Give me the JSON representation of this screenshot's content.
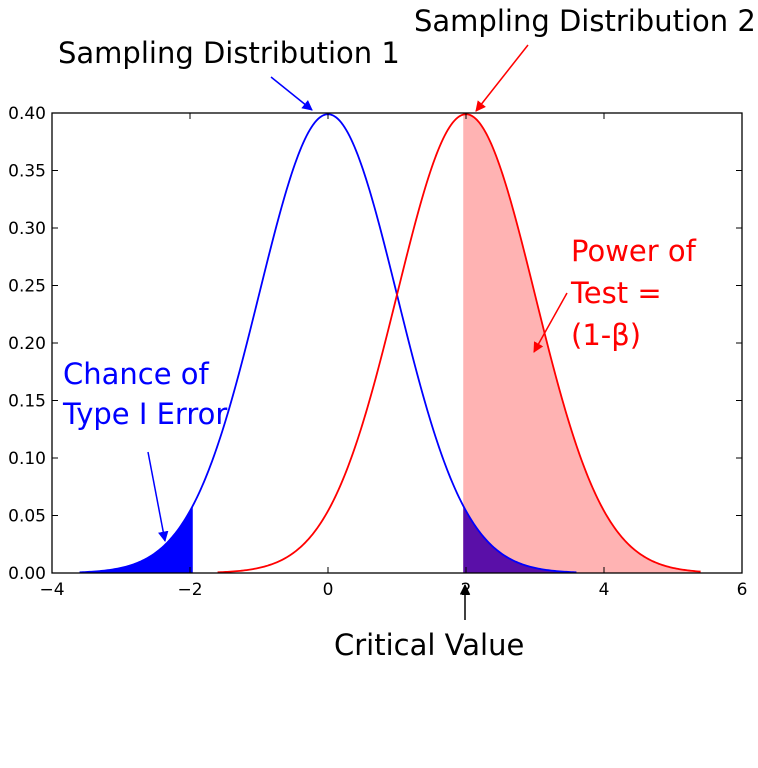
{
  "chart_data": {
    "type": "line",
    "title": "",
    "xlabel": "",
    "ylabel": "",
    "xlim": [
      -4,
      6
    ],
    "ylim": [
      0.0,
      0.4
    ],
    "x_ticks": [
      "−4",
      "−2",
      "0",
      "2",
      "4",
      "6"
    ],
    "y_ticks": [
      "0.00",
      "0.05",
      "0.10",
      "0.15",
      "0.20",
      "0.25",
      "0.30",
      "0.35",
      "0.40"
    ],
    "series": [
      {
        "mean": 0,
        "sd": 1,
        "x_range": [
          -3.6,
          3.6
        ],
        "color": "#0000ff",
        "peak": 0.399
      },
      {
        "mean": 2,
        "sd": 1,
        "x_range": [
          -1.6,
          5.4
        ],
        "color": "#ff0000",
        "peak": 0.399
      }
    ],
    "critical_value": 1.96,
    "shaded_regions": [
      {
        "series": 0,
        "from": -3.6,
        "to": -1.96,
        "color": "#0000ff"
      },
      {
        "series": 1,
        "from": 1.96,
        "to": 5.4,
        "color": "#ffb3b3"
      },
      {
        "series": 0,
        "from": 1.96,
        "to": 3.6,
        "color": "#5a0fa8"
      }
    ],
    "annotations": {
      "dist1": {
        "text": "Sampling Distribution 1",
        "color": "#000000"
      },
      "dist2": {
        "text": "Sampling Distribution 2",
        "color": "#000000"
      },
      "type1": {
        "lines": [
          "Chance of",
          "Type I Error"
        ],
        "color": "#0000ff"
      },
      "power": {
        "lines": [
          "Power of",
          "Test =",
          "(1-β)"
        ],
        "color": "#ff0000"
      },
      "critical": {
        "text": "Critical Value",
        "color": "#000000"
      }
    }
  }
}
